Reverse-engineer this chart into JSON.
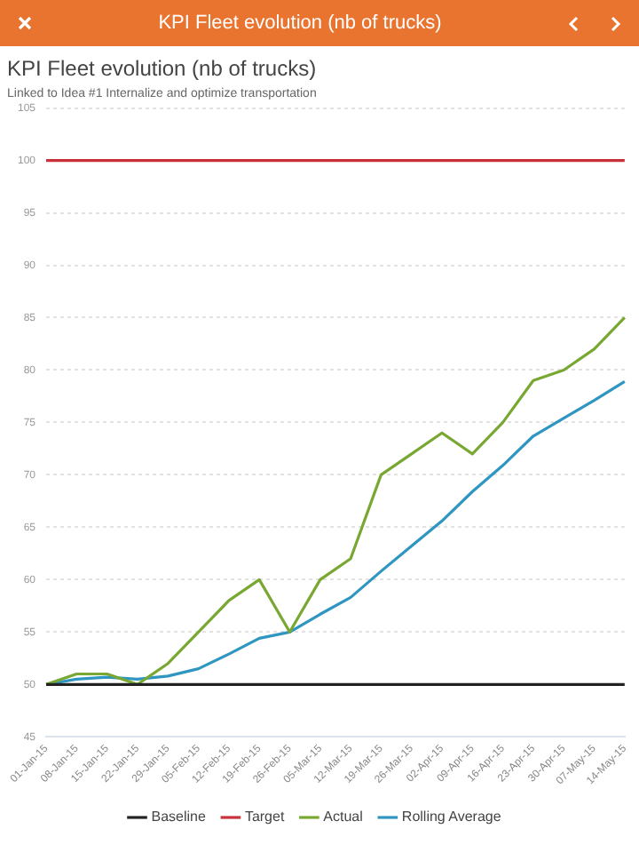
{
  "chart_data": {
    "type": "line",
    "title": "KPI Fleet evolution (nb of trucks)",
    "subtitle": "Linked to Idea #1 Internalize and optimize transportation",
    "categories": [
      "01-Jan-15",
      "08-Jan-15",
      "15-Jan-15",
      "22-Jan-15",
      "29-Jan-15",
      "05-Feb-15",
      "12-Feb-15",
      "19-Feb-15",
      "26-Feb-15",
      "05-Mar-15",
      "12-Mar-15",
      "19-Mar-15",
      "26-Mar-15",
      "02-Apr-15",
      "09-Apr-15",
      "16-Apr-15",
      "23-Apr-15",
      "30-Apr-15",
      "07-May-15",
      "14-May-15"
    ],
    "series": [
      {
        "name": "Baseline",
        "color": "#222222",
        "values": [
          50,
          50,
          50,
          50,
          50,
          50,
          50,
          50,
          50,
          50,
          50,
          50,
          50,
          50,
          50,
          50,
          50,
          50,
          50,
          50
        ]
      },
      {
        "name": "Target",
        "color": "#c8303a",
        "values": [
          100,
          100,
          100,
          100,
          100,
          100,
          100,
          100,
          100,
          100,
          100,
          100,
          100,
          100,
          100,
          100,
          100,
          100,
          100,
          100
        ]
      },
      {
        "name": "Actual",
        "color": "#78a832",
        "values": [
          50,
          51,
          51,
          50,
          52,
          55,
          58,
          60,
          55,
          60,
          62,
          70,
          72,
          74,
          72,
          75,
          79,
          80,
          82,
          85
        ]
      },
      {
        "name": "Rolling Average",
        "color": "#2e96c0",
        "values": [
          50,
          50.5,
          50.7,
          50.5,
          50.8,
          51.5,
          52.9,
          54.4,
          55,
          56.7,
          58.3,
          60.8,
          63.2,
          65.6,
          68.4,
          70.9,
          73.7,
          75.4,
          77.1,
          78.9
        ]
      }
    ],
    "ylim": [
      45,
      105
    ],
    "yticks": [
      45,
      50,
      55,
      60,
      65,
      70,
      75,
      80,
      85,
      90,
      95,
      100,
      105
    ],
    "grid": "y",
    "legend": "bottom",
    "marker": "none",
    "line_style": "solid"
  }
}
